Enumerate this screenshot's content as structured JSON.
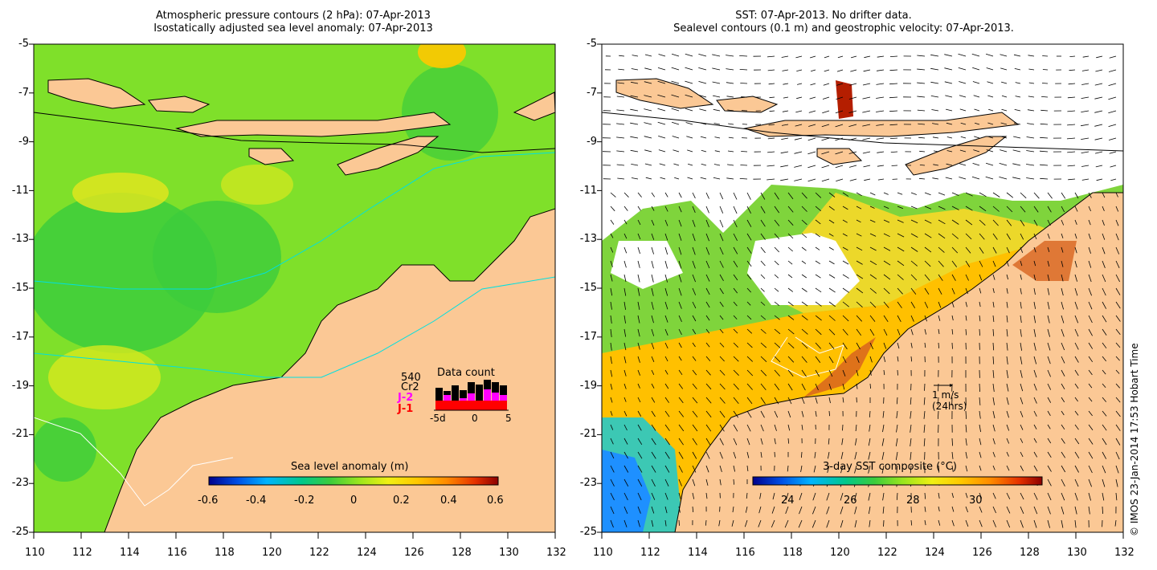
{
  "left_panel": {
    "title_line1": "Atmospheric pressure contours (2 hPa): 07-Apr-2013",
    "title_line2": "Isostatically adjusted sea level anomaly: 07-Apr-2013",
    "colorbar": {
      "label": "Sea level anomaly (m)",
      "ticks": [
        "-0.6",
        "-0.4",
        "-0.2",
        "0",
        "0.2",
        "0.4",
        "0.6"
      ],
      "range": [
        -0.6,
        0.6
      ]
    },
    "data_count": {
      "title": "Data count",
      "total_label": "540",
      "satellites": [
        {
          "name": "Cr2",
          "color": "#000000"
        },
        {
          "name": "J-2",
          "color": "#ff00ff"
        },
        {
          "name": "J-1",
          "color": "#ff0000"
        }
      ],
      "axis_ticks": [
        "-5d",
        "0",
        "5"
      ]
    }
  },
  "right_panel": {
    "title_line1": "SST: 07-Apr-2013. No drifter data.",
    "title_line2": "Sealevel contours (0.1 m) and geostrophic velocity: 07-Apr-2013.",
    "colorbar": {
      "label": "3-day SST composite (°C)",
      "ticks": [
        "24",
        "26",
        "28",
        "30"
      ],
      "range": [
        22.8,
        32.0
      ]
    },
    "velocity_scale": {
      "label": "1 m/s",
      "sublabel": "(24hrs)"
    }
  },
  "axes": {
    "lat_ticks": [
      "-5",
      "-7",
      "-9",
      "-11",
      "-13",
      "-15",
      "-17",
      "-19",
      "-21",
      "-23",
      "-25"
    ],
    "lon_ticks": [
      "110",
      "112",
      "114",
      "116",
      "118",
      "120",
      "122",
      "124",
      "126",
      "128",
      "130",
      "132"
    ]
  },
  "credit": "© IMOS 23-Jan-2014 17:53 Hobart Time",
  "colors": {
    "land": "#fbc895",
    "sla_cmap": [
      "#00008c",
      "#0050e6",
      "#00b4ff",
      "#00c88c",
      "#3ccc3c",
      "#9be61e",
      "#f0f014",
      "#ffc800",
      "#ff8c00",
      "#e63200",
      "#8c0000"
    ],
    "sst_cmap": [
      "#00008c",
      "#0050e6",
      "#00b4ff",
      "#00c88c",
      "#3ccc3c",
      "#9be61e",
      "#f0f014",
      "#ffc800",
      "#ff8c00",
      "#e63200",
      "#8c0000"
    ]
  }
}
